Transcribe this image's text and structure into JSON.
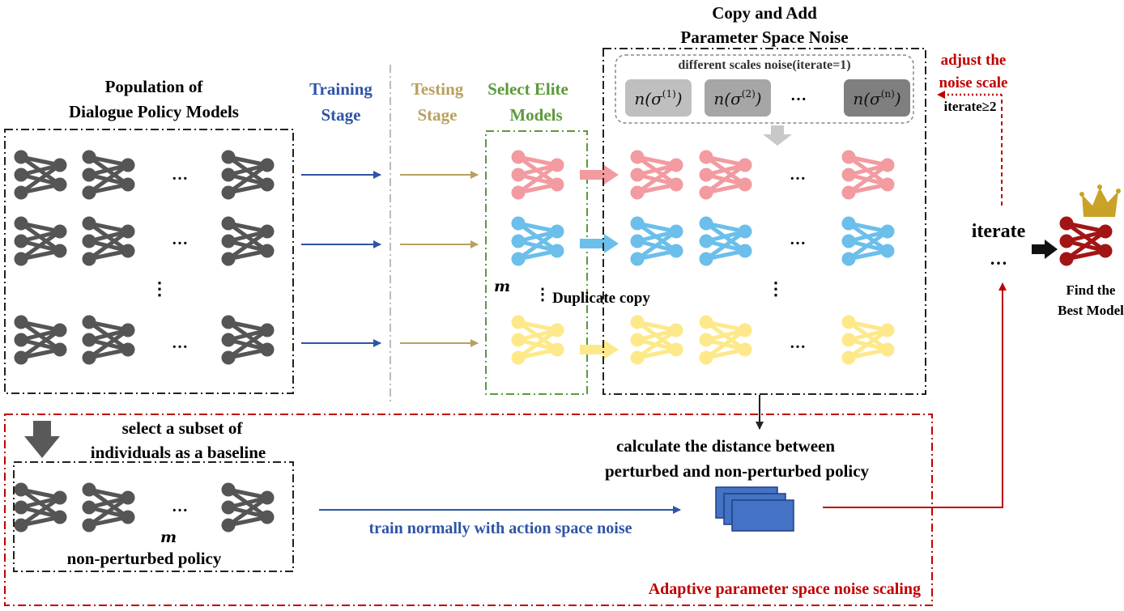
{
  "labels": {
    "population_title_1": "Population of",
    "population_title_2": "Dialogue Policy Models",
    "training_1": "Training",
    "training_2": "Stage",
    "testing_1": "Testing",
    "testing_2": "Stage",
    "elite_1": "Select Elite",
    "elite_2": "Models",
    "copy_add_1": "Copy and Add",
    "copy_add_2": "Parameter Space Noise",
    "noise_scales_title": "different scales noise(iterate=1)",
    "adjust_1": "adjust the",
    "adjust_2": "noise scale",
    "iterate_ge2": "iterate≥2",
    "iterate": "iterate",
    "find_1": "Find the",
    "find_2": "Best Model",
    "m_elite": "m",
    "duplicate_copy": "Duplicate copy",
    "subset_1": "select a subset of",
    "subset_2": "individuals as a baseline",
    "m_baseline": "m",
    "non_perturbed": "non-perturbed policy",
    "distance_1": "calculate the distance between",
    "distance_2": "perturbed and non-perturbed policy",
    "train_normally": "train normally with action space noise",
    "adaptive": "Adaptive parameter space noise scaling",
    "ellipsis": "…",
    "vdots": "⋮"
  },
  "noise_boxes": [
    {
      "label": "n(σ",
      "sup": "(1)",
      "close": ")",
      "color": "#bfbfbf"
    },
    {
      "label": "n(σ",
      "sup": "(2)",
      "close": ")",
      "color": "#a6a6a6"
    },
    {
      "label": "n(σ",
      "sup": "(n)",
      "close": ")",
      "color": "#7f7f7f"
    }
  ],
  "colors": {
    "network_gray": "#555555",
    "network_red": "#f29ba0",
    "network_blue": "#6bbfea",
    "network_yellow": "#fde98a",
    "best_model": "#a31515",
    "crown": "#c9a227",
    "training_blue": "#2e54a5",
    "testing_gold": "#b8a060",
    "elite_green": "#5b9a3a",
    "adaptive_red": "#c00000",
    "stack_blue": "#4472c4"
  }
}
